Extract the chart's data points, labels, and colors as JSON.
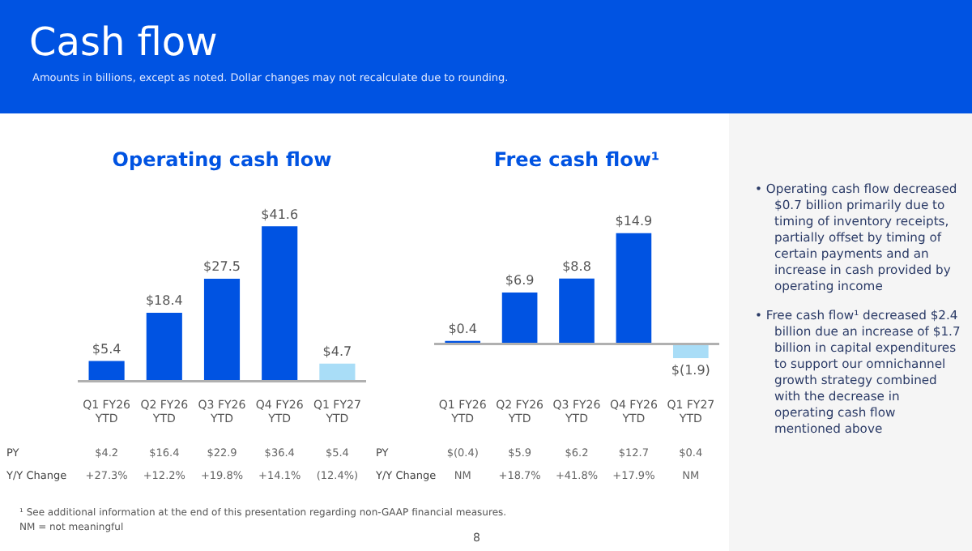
{
  "chart_data": [
    {
      "type": "other",
      "title": "Cash flow",
      "subtitle": "Amounts in billions, except as noted.  Dollar changes may not recalculate due to rounding.",
      "annotations": [
        "¹ See additional information at the end of this presentation regarding non-GAAP financial measures.",
        "NM = not meaningful",
        "8"
      ]
    },
    {
      "type": "bar",
      "title": "Operating cash flow",
      "categories": [
        "Q1 FY26 YTD",
        "Q2 FY26 YTD",
        "Q3 FY26 YTD",
        "Q4 FY26 YTD",
        "Q1 FY27 YTD"
      ],
      "values": [
        5.4,
        18.4,
        27.5,
        41.6,
        4.7
      ],
      "colors": [
        "#0053e2",
        "#0053e2",
        "#0053e2",
        "#0053e2",
        "#a9ddf7"
      ],
      "value_labels": [
        "$5.4",
        "$18.4",
        "$27.5",
        "$41.6",
        "$4.7"
      ],
      "annotations": [
        "PY",
        "$4.2",
        "$16.4",
        "$22.9",
        "$36.4",
        "$5.4",
        "Y/Y Change",
        "+27.3%",
        "+12.2%",
        "+19.8%",
        "+14.1%",
        "(12.4%)"
      ]
    },
    {
      "type": "bar",
      "title": "Free cash flow¹",
      "categories": [
        "Q1 FY26 YTD",
        "Q2 FY26 YTD",
        "Q3 FY26 YTD",
        "Q4 FY26 YTD",
        "Q1 FY27 YTD"
      ],
      "values": [
        0.4,
        6.9,
        8.8,
        14.9,
        -1.9
      ],
      "colors": [
        "#0053e2",
        "#0053e2",
        "#0053e2",
        "#0053e2",
        "#a9ddf7"
      ],
      "value_labels": [
        "$0.4",
        "$6.9",
        "$8.8",
        "$14.9",
        "$(1.9)"
      ],
      "annotations": [
        "PY",
        "$(0.4)",
        "$5.9",
        "$6.2",
        "$12.7",
        "$0.4",
        "Y/Y Change",
        "NM",
        "+18.7%",
        "+41.8%",
        "+17.9%",
        "NM"
      ]
    },
    {
      "type": "other",
      "annotations": [
        "• Operating cash flow decreased $0.7 billion primarily due to timing of inventory receipts, partially offset by timing of certain payments and an increase in cash provided by operating income",
        "• Free cash flow¹ decreased $2.4 billion due an increase of $1.7 billion in capital expenditures to support our omnichannel growth strategy combined with the decrease in operating cash flow mentioned above"
      ]
    }
  ]
}
